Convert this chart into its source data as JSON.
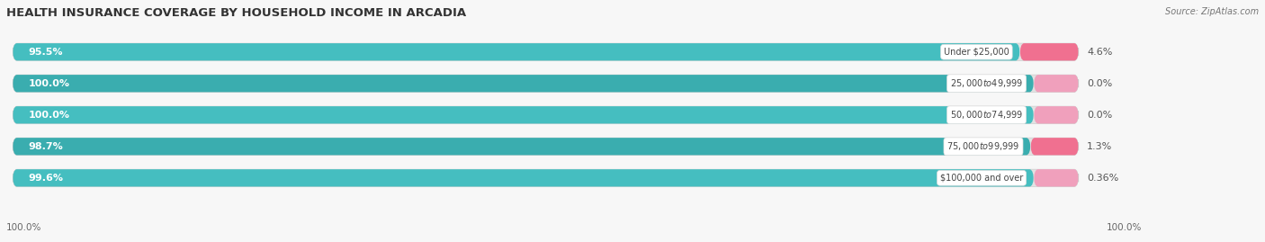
{
  "title": "HEALTH INSURANCE COVERAGE BY HOUSEHOLD INCOME IN ARCADIA",
  "source": "Source: ZipAtlas.com",
  "categories": [
    "Under $25,000",
    "$25,000 to $49,999",
    "$50,000 to $74,999",
    "$75,000 to $99,999",
    "$100,000 and over"
  ],
  "with_coverage": [
    95.5,
    100.0,
    100.0,
    98.7,
    99.6
  ],
  "without_coverage": [
    4.6,
    0.0,
    0.0,
    1.3,
    0.36
  ],
  "with_coverage_labels": [
    "95.5%",
    "100.0%",
    "100.0%",
    "98.7%",
    "99.6%"
  ],
  "without_coverage_labels": [
    "4.6%",
    "0.0%",
    "0.0%",
    "1.3%",
    "0.36%"
  ],
  "color_with": "#45BEC0",
  "color_with_alt": "#3AADAF",
  "color_without": "#F07090",
  "color_without_light": "#F0A0BC",
  "bg_color": "#f7f7f7",
  "bar_bg_color": "#e2e2e2",
  "title_fontsize": 9.5,
  "label_fontsize": 8,
  "axis_tick_fontsize": 7.5,
  "legend_fontsize": 8,
  "x_axis_label_left": "100.0%",
  "x_axis_label_right": "100.0%",
  "without_display_min": 5.5,
  "without_display_values": [
    5.5,
    4.5,
    4.5,
    4.5,
    4.5
  ]
}
